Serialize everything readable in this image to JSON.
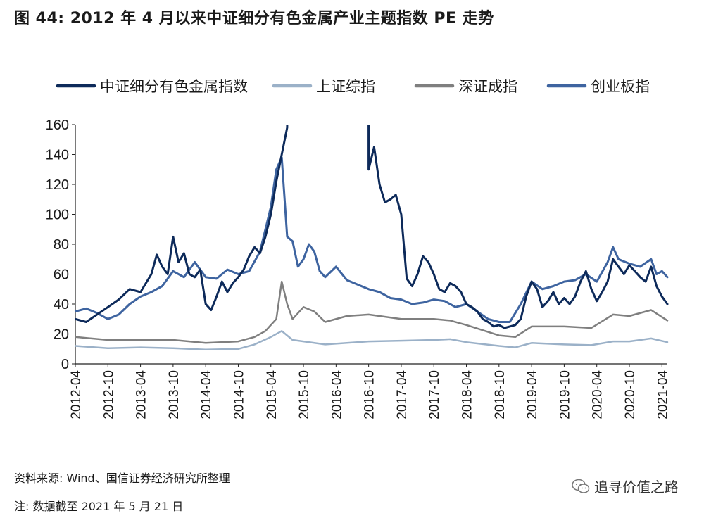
{
  "header": {
    "title": "图 44:  2012 年 4 月以来中证细分有色金属产业主题指数 PE 走势"
  },
  "footer": {
    "source": "资料来源: Wind、国信证券经济研究所整理",
    "note": "注:  数据截至 2021 年 5 月 21 日",
    "watermark": "追寻价值之路"
  },
  "icons": {
    "watermark": "wechat-icon"
  },
  "chart_data": {
    "type": "line",
    "title": "",
    "xlabel": "",
    "ylabel": "",
    "ylim": [
      0,
      160
    ],
    "yticks": [
      0,
      20,
      40,
      60,
      80,
      100,
      120,
      140,
      160
    ],
    "xlim": [
      "2012-04",
      "2021-05"
    ],
    "xticks": [
      "2012-04",
      "2012-10",
      "2013-04",
      "2013-10",
      "2014-04",
      "2014-10",
      "2015-04",
      "2015-10",
      "2016-04",
      "2016-10",
      "2017-04",
      "2017-10",
      "2018-04",
      "2018-10",
      "2019-04",
      "2019-10",
      "2020-04",
      "2020-10",
      "2021-04"
    ],
    "grid": false,
    "legend": "top",
    "series": [
      {
        "name": "中证细分有色金属指数",
        "color": "#0d2a5a",
        "width": 3,
        "points": [
          [
            "2012-04",
            30
          ],
          [
            "2012-06",
            28
          ],
          [
            "2012-08",
            33
          ],
          [
            "2012-10",
            38
          ],
          [
            "2012-12",
            43
          ],
          [
            "2013-02",
            50
          ],
          [
            "2013-04",
            48
          ],
          [
            "2013-06",
            60
          ],
          [
            "2013-07",
            73
          ],
          [
            "2013-08",
            65
          ],
          [
            "2013-09",
            60
          ],
          [
            "2013-10",
            85
          ],
          [
            "2013-11",
            68
          ],
          [
            "2013-12",
            74
          ],
          [
            "2014-01",
            60
          ],
          [
            "2014-02",
            58
          ],
          [
            "2014-03",
            63
          ],
          [
            "2014-04",
            40
          ],
          [
            "2014-05",
            36
          ],
          [
            "2014-06",
            45
          ],
          [
            "2014-07",
            55
          ],
          [
            "2014-08",
            48
          ],
          [
            "2014-09",
            54
          ],
          [
            "2014-10",
            58
          ],
          [
            "2014-11",
            63
          ],
          [
            "2014-12",
            72
          ],
          [
            "2015-01",
            78
          ],
          [
            "2015-02",
            74
          ],
          [
            "2015-03",
            85
          ],
          [
            "2015-04",
            100
          ],
          [
            "2015-05",
            122
          ],
          [
            "2015-06",
            140
          ],
          [
            "2015-07",
            158
          ],
          [
            "2015-07",
            162
          ]
        ]
      },
      {
        "name": "中证细分有色金属指数-seg2",
        "legend": false,
        "color": "#0d2a5a",
        "width": 3,
        "points": [
          [
            "2016-10",
            160
          ],
          [
            "2016-10",
            130
          ],
          [
            "2016-11",
            145
          ],
          [
            "2016-12",
            120
          ],
          [
            "2017-01",
            108
          ],
          [
            "2017-02",
            110
          ],
          [
            "2017-03",
            113
          ],
          [
            "2017-04",
            100
          ],
          [
            "2017-05",
            57
          ],
          [
            "2017-06",
            52
          ],
          [
            "2017-07",
            60
          ],
          [
            "2017-08",
            72
          ],
          [
            "2017-09",
            68
          ],
          [
            "2017-10",
            60
          ],
          [
            "2017-11",
            50
          ],
          [
            "2017-12",
            48
          ],
          [
            "2018-01",
            54
          ],
          [
            "2018-02",
            52
          ],
          [
            "2018-03",
            48
          ],
          [
            "2018-04",
            40
          ],
          [
            "2018-05",
            38
          ],
          [
            "2018-06",
            35
          ],
          [
            "2018-07",
            30
          ],
          [
            "2018-08",
            28
          ],
          [
            "2018-09",
            25
          ],
          [
            "2018-10",
            26
          ],
          [
            "2018-11",
            24
          ],
          [
            "2018-12",
            25
          ],
          [
            "2019-01",
            26
          ],
          [
            "2019-02",
            30
          ],
          [
            "2019-03",
            45
          ],
          [
            "2019-04",
            55
          ],
          [
            "2019-05",
            50
          ],
          [
            "2019-06",
            38
          ],
          [
            "2019-07",
            42
          ],
          [
            "2019-08",
            48
          ],
          [
            "2019-09",
            40
          ],
          [
            "2019-10",
            44
          ],
          [
            "2019-11",
            40
          ],
          [
            "2019-12",
            45
          ],
          [
            "2020-01",
            55
          ],
          [
            "2020-02",
            62
          ],
          [
            "2020-03",
            50
          ],
          [
            "2020-04",
            42
          ],
          [
            "2020-05",
            48
          ],
          [
            "2020-06",
            55
          ],
          [
            "2020-07",
            70
          ],
          [
            "2020-08",
            65
          ],
          [
            "2020-09",
            60
          ],
          [
            "2020-10",
            66
          ],
          [
            "2020-11",
            62
          ],
          [
            "2020-12",
            58
          ],
          [
            "2021-01",
            55
          ],
          [
            "2021-02",
            65
          ],
          [
            "2021-03",
            52
          ],
          [
            "2021-04",
            45
          ],
          [
            "2021-05",
            40
          ]
        ]
      },
      {
        "name": "上证综指",
        "color": "#9bb1c8",
        "width": 2.5,
        "points": [
          [
            "2012-04",
            12
          ],
          [
            "2012-10",
            10.5
          ],
          [
            "2013-04",
            11
          ],
          [
            "2013-10",
            10.5
          ],
          [
            "2014-04",
            9.5
          ],
          [
            "2014-10",
            10
          ],
          [
            "2015-01",
            13
          ],
          [
            "2015-04",
            18
          ],
          [
            "2015-06",
            22
          ],
          [
            "2015-08",
            16
          ],
          [
            "2015-10",
            15
          ],
          [
            "2016-02",
            13
          ],
          [
            "2016-06",
            14
          ],
          [
            "2016-10",
            15
          ],
          [
            "2017-04",
            15.5
          ],
          [
            "2017-10",
            16
          ],
          [
            "2018-01",
            16.5
          ],
          [
            "2018-04",
            14.5
          ],
          [
            "2018-10",
            12
          ],
          [
            "2019-01",
            11
          ],
          [
            "2019-04",
            14
          ],
          [
            "2019-10",
            13
          ],
          [
            "2020-03",
            12.5
          ],
          [
            "2020-07",
            15
          ],
          [
            "2020-10",
            15
          ],
          [
            "2021-02",
            17
          ],
          [
            "2021-05",
            14.5
          ]
        ]
      },
      {
        "name": "深证成指",
        "color": "#7f7f7f",
        "width": 2.5,
        "points": [
          [
            "2012-04",
            18
          ],
          [
            "2012-10",
            16
          ],
          [
            "2013-04",
            16
          ],
          [
            "2013-10",
            16
          ],
          [
            "2014-04",
            14
          ],
          [
            "2014-10",
            15
          ],
          [
            "2015-01",
            18
          ],
          [
            "2015-03",
            22
          ],
          [
            "2015-05",
            30
          ],
          [
            "2015-06",
            55
          ],
          [
            "2015-07",
            40
          ],
          [
            "2015-08",
            30
          ],
          [
            "2015-10",
            38
          ],
          [
            "2015-12",
            35
          ],
          [
            "2016-02",
            28
          ],
          [
            "2016-06",
            32
          ],
          [
            "2016-10",
            33
          ],
          [
            "2017-04",
            30
          ],
          [
            "2017-10",
            30
          ],
          [
            "2018-01",
            29
          ],
          [
            "2018-04",
            26
          ],
          [
            "2018-10",
            19
          ],
          [
            "2019-01",
            18
          ],
          [
            "2019-04",
            25
          ],
          [
            "2019-10",
            25
          ],
          [
            "2020-03",
            24
          ],
          [
            "2020-07",
            33
          ],
          [
            "2020-10",
            32
          ],
          [
            "2021-02",
            36
          ],
          [
            "2021-05",
            29
          ]
        ]
      },
      {
        "name": "创业板指",
        "color": "#3e64a0",
        "width": 3,
        "points": [
          [
            "2012-04",
            35
          ],
          [
            "2012-06",
            37
          ],
          [
            "2012-08",
            34
          ],
          [
            "2012-10",
            30
          ],
          [
            "2012-12",
            33
          ],
          [
            "2013-02",
            40
          ],
          [
            "2013-04",
            45
          ],
          [
            "2013-06",
            48
          ],
          [
            "2013-08",
            52
          ],
          [
            "2013-10",
            62
          ],
          [
            "2013-12",
            58
          ],
          [
            "2014-02",
            68
          ],
          [
            "2014-04",
            58
          ],
          [
            "2014-06",
            57
          ],
          [
            "2014-08",
            63
          ],
          [
            "2014-10",
            60
          ],
          [
            "2014-12",
            62
          ],
          [
            "2015-02",
            75
          ],
          [
            "2015-04",
            105
          ],
          [
            "2015-05",
            130
          ],
          [
            "2015-06",
            138
          ],
          [
            "2015-07",
            85
          ],
          [
            "2015-08",
            82
          ],
          [
            "2015-09",
            65
          ],
          [
            "2015-10",
            70
          ],
          [
            "2015-11",
            80
          ],
          [
            "2015-12",
            75
          ],
          [
            "2016-01",
            62
          ],
          [
            "2016-02",
            58
          ],
          [
            "2016-04",
            65
          ],
          [
            "2016-06",
            56
          ],
          [
            "2016-08",
            53
          ],
          [
            "2016-10",
            50
          ],
          [
            "2016-12",
            48
          ],
          [
            "2017-02",
            44
          ],
          [
            "2017-04",
            43
          ],
          [
            "2017-06",
            40
          ],
          [
            "2017-08",
            41
          ],
          [
            "2017-10",
            43
          ],
          [
            "2017-12",
            42
          ],
          [
            "2018-02",
            38
          ],
          [
            "2018-04",
            40
          ],
          [
            "2018-06",
            35
          ],
          [
            "2018-08",
            30
          ],
          [
            "2018-10",
            28
          ],
          [
            "2018-12",
            28
          ],
          [
            "2019-02",
            40
          ],
          [
            "2019-04",
            55
          ],
          [
            "2019-06",
            50
          ],
          [
            "2019-08",
            52
          ],
          [
            "2019-10",
            55
          ],
          [
            "2019-12",
            56
          ],
          [
            "2020-02",
            60
          ],
          [
            "2020-04",
            55
          ],
          [
            "2020-06",
            68
          ],
          [
            "2020-07",
            78
          ],
          [
            "2020-08",
            70
          ],
          [
            "2020-10",
            67
          ],
          [
            "2020-12",
            65
          ],
          [
            "2021-02",
            70
          ],
          [
            "2021-03",
            60
          ],
          [
            "2021-04",
            62
          ],
          [
            "2021-05",
            58
          ]
        ]
      }
    ]
  }
}
